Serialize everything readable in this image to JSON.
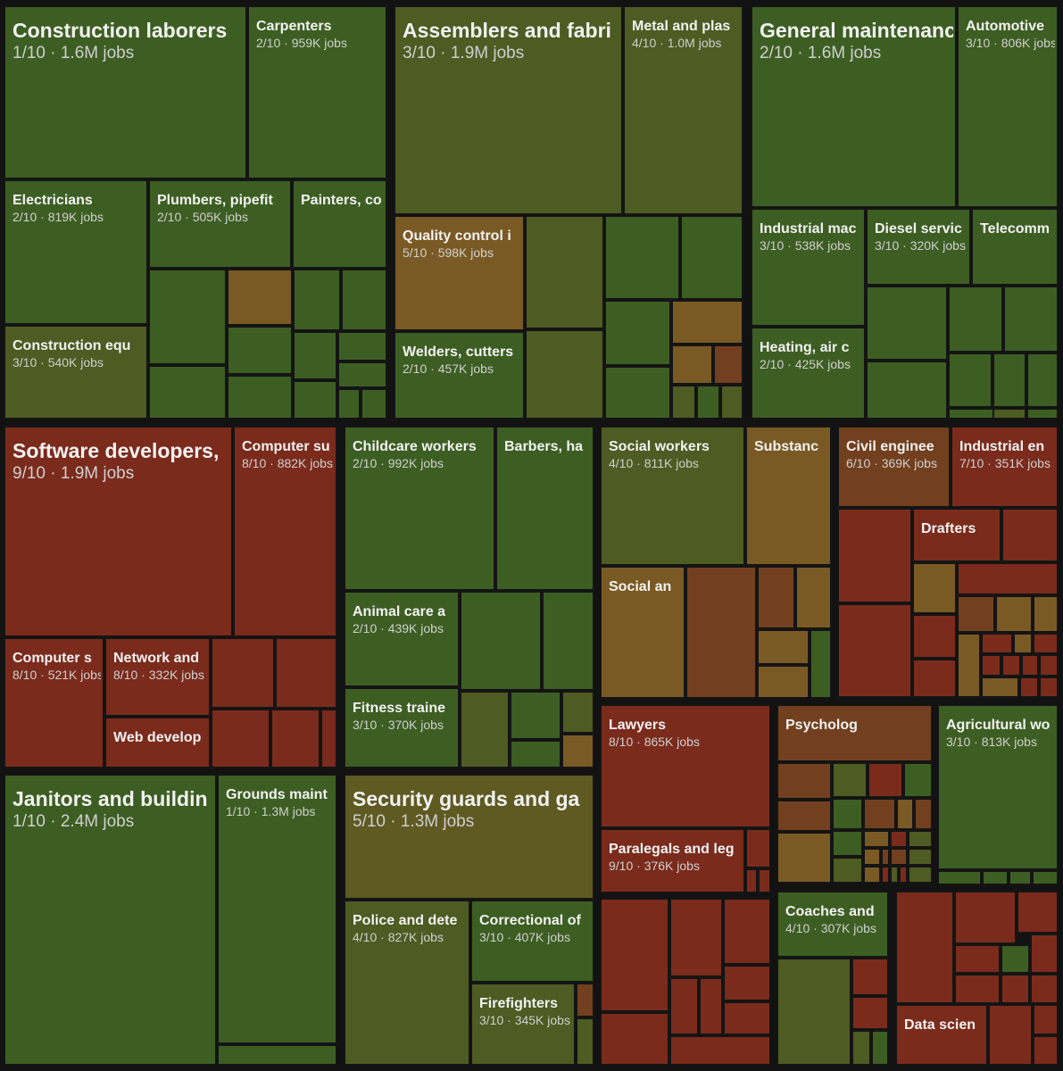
{
  "chart_data": {
    "type": "treemap",
    "title": "",
    "value_unit": "jobs",
    "color_scale": {
      "metric": "score out of 10",
      "low_color": "#3d5e22",
      "mid_color": "#7a5a24",
      "high_color": "#7a2518"
    },
    "groups": [
      {
        "items": [
          {
            "name": "Construction laborers",
            "score": 1,
            "jobs": "1.6M"
          },
          {
            "name": "Carpenters",
            "score": 2,
            "jobs": "959K"
          },
          {
            "name": "Electricians",
            "score": 2,
            "jobs": "819K"
          },
          {
            "name": "Plumbers, pipefit",
            "score": 2,
            "jobs": "505K"
          },
          {
            "name": "Painters, co",
            "score": null,
            "jobs": ""
          },
          {
            "name": "Construction equ",
            "score": 3,
            "jobs": "540K"
          }
        ]
      },
      {
        "items": [
          {
            "name": "Assemblers and fabri",
            "score": 3,
            "jobs": "1.9M"
          },
          {
            "name": "Metal and plas",
            "score": 4,
            "jobs": "1.0M"
          },
          {
            "name": "Quality control i",
            "score": 5,
            "jobs": "598K"
          },
          {
            "name": "Welders, cutters",
            "score": 2,
            "jobs": "457K"
          }
        ]
      },
      {
        "items": [
          {
            "name": "General maintenanc",
            "score": 2,
            "jobs": "1.6M"
          },
          {
            "name": "Automotive",
            "score": 3,
            "jobs": "806K"
          },
          {
            "name": "Industrial mac",
            "score": 3,
            "jobs": "538K"
          },
          {
            "name": "Diesel servic",
            "score": 3,
            "jobs": "320K"
          },
          {
            "name": "Telecomm",
            "score": null,
            "jobs": ""
          },
          {
            "name": "Heating, air c",
            "score": 2,
            "jobs": "425K"
          }
        ]
      },
      {
        "items": [
          {
            "name": "Software developers,",
            "score": 9,
            "jobs": "1.9M"
          },
          {
            "name": "Computer su",
            "score": 8,
            "jobs": "882K"
          },
          {
            "name": "Computer s",
            "score": 8,
            "jobs": "521K"
          },
          {
            "name": "Network and",
            "score": 8,
            "jobs": "332K"
          },
          {
            "name": "Web develop",
            "score": null,
            "jobs": ""
          }
        ]
      },
      {
        "items": [
          {
            "name": "Childcare workers",
            "score": 2,
            "jobs": "992K"
          },
          {
            "name": "Barbers, ha",
            "score": null,
            "jobs": ""
          },
          {
            "name": "Animal care a",
            "score": 2,
            "jobs": "439K"
          },
          {
            "name": "Fitness traine",
            "score": 3,
            "jobs": "370K"
          }
        ]
      },
      {
        "items": [
          {
            "name": "Social workers",
            "score": 4,
            "jobs": "811K"
          },
          {
            "name": "Substanc",
            "score": null,
            "jobs": ""
          },
          {
            "name": "Social an",
            "score": null,
            "jobs": ""
          }
        ]
      },
      {
        "items": [
          {
            "name": "Civil enginee",
            "score": 6,
            "jobs": "369K"
          },
          {
            "name": "Industrial en",
            "score": 7,
            "jobs": "351K"
          },
          {
            "name": "Drafters",
            "score": null,
            "jobs": ""
          }
        ]
      },
      {
        "items": [
          {
            "name": "Janitors and buildin",
            "score": 1,
            "jobs": "2.4M"
          },
          {
            "name": "Grounds maint",
            "score": 1,
            "jobs": "1.3M"
          }
        ]
      },
      {
        "items": [
          {
            "name": "Security guards and ga",
            "score": 5,
            "jobs": "1.3M"
          },
          {
            "name": "Police and dete",
            "score": 4,
            "jobs": "827K"
          },
          {
            "name": "Correctional of",
            "score": 3,
            "jobs": "407K"
          },
          {
            "name": "Firefighters",
            "score": 3,
            "jobs": "345K"
          }
        ]
      },
      {
        "items": [
          {
            "name": "Lawyers",
            "score": 8,
            "jobs": "865K"
          },
          {
            "name": "Paralegals and leg",
            "score": 9,
            "jobs": "376K"
          }
        ]
      },
      {
        "items": [
          {
            "name": "Psycholog",
            "score": null,
            "jobs": ""
          },
          {
            "name": "Agricultural wo",
            "score": 3,
            "jobs": "813K"
          },
          {
            "name": "Coaches and",
            "score": 4,
            "jobs": "307K"
          },
          {
            "name": "Data scien",
            "score": null,
            "jobs": ""
          }
        ]
      }
    ]
  }
}
